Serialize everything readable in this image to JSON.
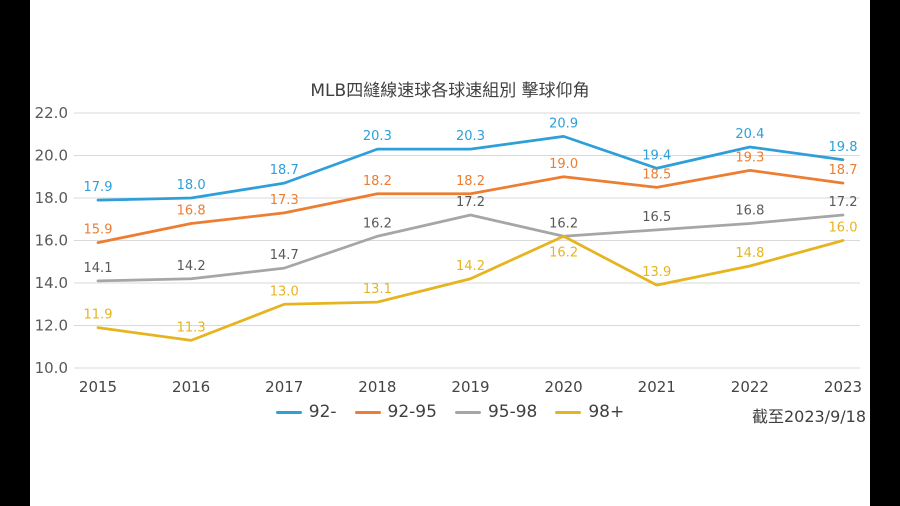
{
  "chart_data": {
    "type": "line",
    "title": "MLB四縫線速球各球速組別 擊球仰角",
    "footnote": "截至2023/9/18",
    "categories": [
      "2015",
      "2016",
      "2017",
      "2018",
      "2019",
      "2020",
      "2021",
      "2022",
      "2023"
    ],
    "series": [
      {
        "name": "92-",
        "color": "#2E9FD9",
        "values": [
          17.9,
          18.0,
          18.7,
          20.3,
          20.3,
          20.9,
          19.4,
          20.4,
          19.8
        ]
      },
      {
        "name": "92-95",
        "color": "#ED7D31",
        "values": [
          15.9,
          16.8,
          17.3,
          18.2,
          18.2,
          19.0,
          18.5,
          19.3,
          18.7
        ]
      },
      {
        "name": "95-98",
        "color": "#A6A6A6",
        "label_color": "#595959",
        "values": [
          14.1,
          14.2,
          14.7,
          16.2,
          17.2,
          16.2,
          16.5,
          16.8,
          17.2
        ]
      },
      {
        "name": "98+",
        "color": "#E6B41E",
        "values": [
          11.9,
          11.3,
          13.0,
          13.1,
          14.2,
          16.2,
          13.9,
          14.8,
          16.0
        ]
      }
    ],
    "ylim": [
      10,
      22
    ],
    "ytick_step": 2,
    "yticks": [
      "22.0",
      "20.0",
      "18.0",
      "16.0",
      "14.0",
      "12.0",
      "10.0"
    ],
    "grid": true,
    "legend_position": "bottom",
    "labels_below": [
      {
        "series_index": 3,
        "point_index": 5
      }
    ],
    "colors": {
      "gridline": "#D9D9D9",
      "axis_text": "#595959",
      "title_text": "#404040"
    }
  }
}
